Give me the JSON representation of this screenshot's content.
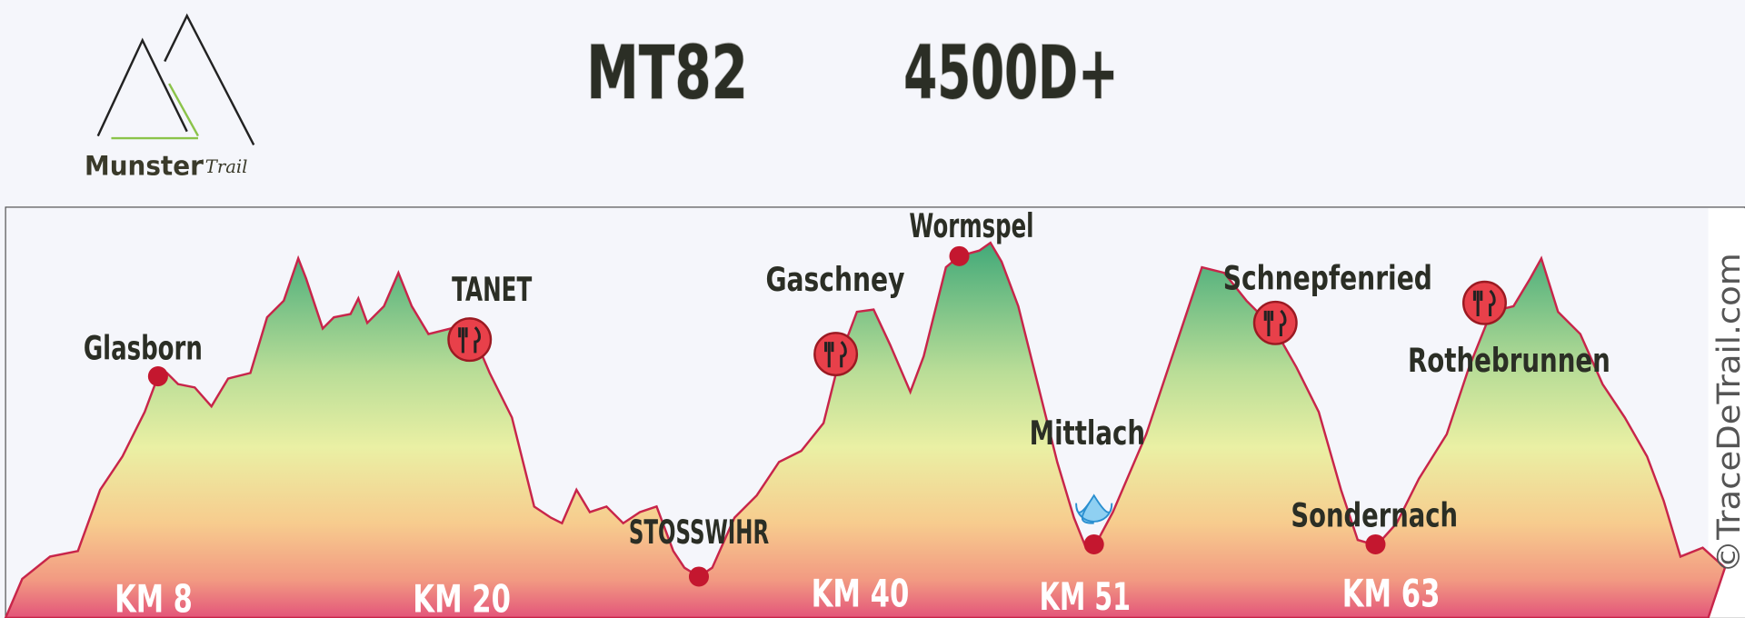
{
  "header": {
    "logo_name": "Munster",
    "logo_suffix": "'Trail",
    "title": "MT82",
    "elevation": "4500D+"
  },
  "profile": {
    "places": [
      "Glasborn",
      "TANET",
      "Gaschney",
      "Wormspel",
      "STOSSWIHR",
      "Mittlach",
      "Schnepfenried",
      "Rothebrunnen",
      "Sondernach"
    ],
    "km_markers": [
      "KM 8",
      "KM 20",
      "KM 40",
      "KM 51",
      "KM 63"
    ]
  },
  "credit": "©TraceDeTrail.com"
}
